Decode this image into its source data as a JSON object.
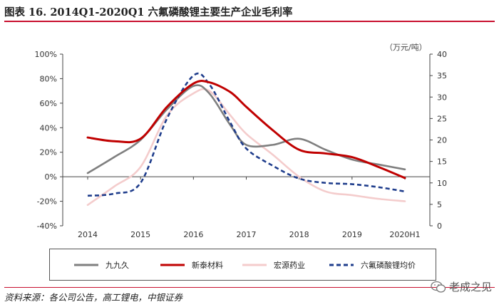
{
  "title": "图表 16. 2014Q1-2020Q1 六氟磷酸锂主要生产企业毛利率",
  "source": "资料来源：各公司公告，高工锂电，中银证券",
  "watermark": "老成之见",
  "chart_data": {
    "type": "line",
    "x_labels": [
      "2014",
      "2015",
      "2016",
      "2017",
      "2018",
      "2019",
      "2020H1"
    ],
    "y_left": {
      "min": -40,
      "max": 100,
      "step": 20,
      "unit": "%",
      "ticks": [
        "100%",
        "80%",
        "60%",
        "40%",
        "20%",
        "0%",
        "-20%",
        "-40%"
      ]
    },
    "y_right": {
      "min": 0,
      "max": 40,
      "step": 5,
      "label": "（万元/吨）",
      "ticks": [
        "40",
        "35",
        "30",
        "25",
        "20",
        "15",
        "10",
        "5",
        "0"
      ]
    },
    "series": [
      {
        "name": "九九久",
        "axis": "left",
        "color": "#7f7f7f",
        "dash": false,
        "x": [
          2014.0,
          2014.5,
          2015.0,
          2015.5,
          2016.0,
          2016.3,
          2016.7,
          2017.0,
          2017.5,
          2018.0,
          2018.5,
          2019.0,
          2019.5,
          2020.0
        ],
        "y": [
          3,
          16,
          30,
          55,
          74,
          68,
          42,
          26,
          26,
          31,
          22,
          14,
          10,
          6
        ]
      },
      {
        "name": "新泰材料",
        "axis": "left",
        "color": "#c00000",
        "dash": false,
        "x": [
          2014.0,
          2014.5,
          2015.0,
          2015.5,
          2016.0,
          2016.3,
          2016.7,
          2017.0,
          2017.5,
          2018.0,
          2018.5,
          2019.0,
          2019.5,
          2020.0
        ],
        "y": [
          32,
          29,
          31,
          57,
          76,
          77,
          69,
          57,
          38,
          22,
          19,
          16,
          8,
          -1
        ]
      },
      {
        "name": "宏源药业",
        "axis": "left",
        "color": "#f4cccc",
        "dash": false,
        "x": [
          2014.0,
          2014.5,
          2015.0,
          2015.5,
          2016.0,
          2016.3,
          2016.7,
          2017.0,
          2017.5,
          2018.0,
          2018.5,
          2019.0,
          2019.5,
          2020.0
        ],
        "y": [
          -23,
          -8,
          8,
          50,
          68,
          70,
          50,
          35,
          18,
          0,
          -12,
          -15,
          -18,
          -20
        ]
      },
      {
        "name": "六氟磷酸锂均价",
        "axis": "right",
        "color": "#1f3d8c",
        "dash": true,
        "x": [
          2014.0,
          2014.5,
          2015.0,
          2015.5,
          2016.0,
          2016.3,
          2016.7,
          2017.0,
          2017.5,
          2018.0,
          2018.5,
          2019.0,
          2019.5,
          2020.0
        ],
        "y": [
          7,
          7.5,
          10,
          25,
          35,
          33,
          24,
          18,
          14,
          11,
          10,
          9.7,
          9,
          8
        ]
      }
    ]
  }
}
